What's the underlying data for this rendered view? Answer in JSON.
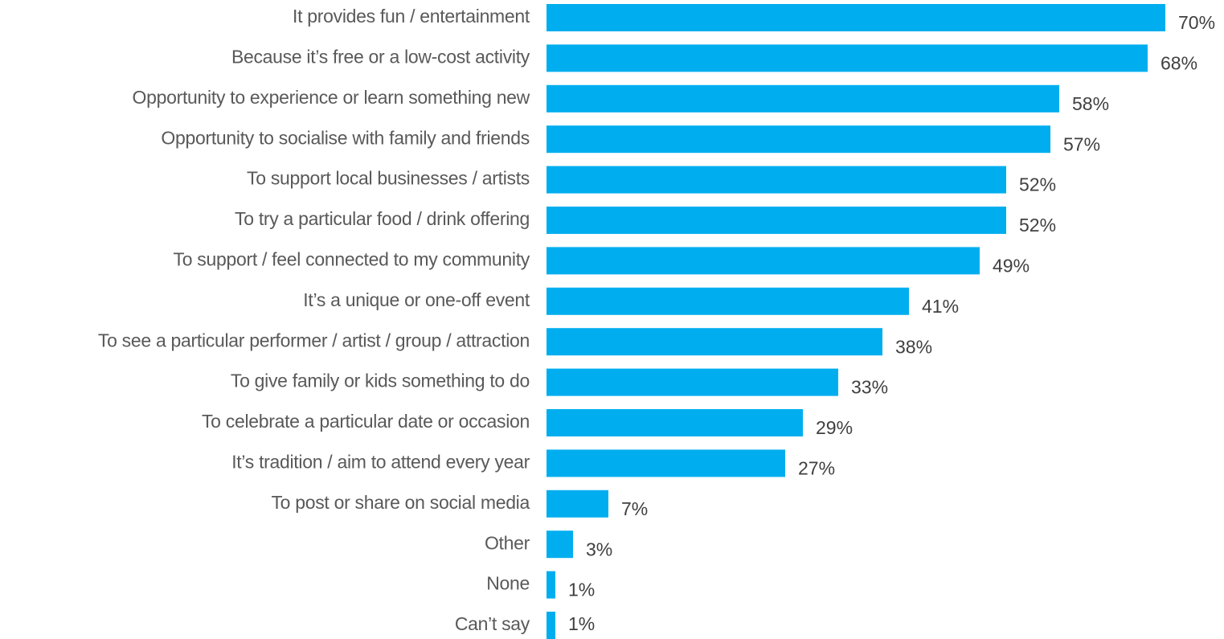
{
  "chart_data": {
    "type": "bar",
    "orientation": "horizontal",
    "bar_color": "#00AEEF",
    "xlim": [
      0,
      100
    ],
    "grid": false,
    "categories": [
      "It provides fun / entertainment",
      "Because it’s free or a low-cost activity",
      "Opportunity to experience or learn something new",
      "Opportunity to socialise with family and friends",
      "To support local businesses / artists",
      "To try a particular food / drink offering",
      "To support / feel connected to my community",
      "It’s a unique or one-off event",
      "To see a particular performer / artist / group / attraction",
      "To give family or kids something to do",
      "To celebrate a particular date or occasion",
      "It’s tradition / aim to attend every year",
      "To post or share on social media",
      "Other",
      "None",
      "Can’t say"
    ],
    "values": [
      70,
      68,
      58,
      57,
      52,
      52,
      49,
      41,
      38,
      33,
      29,
      27,
      7,
      3,
      1,
      1
    ],
    "value_labels": [
      "70%",
      "68%",
      "58%",
      "57%",
      "52%",
      "52%",
      "49%",
      "41%",
      "38%",
      "33%",
      "29%",
      "27%",
      "7%",
      "3%",
      "1%",
      "1%"
    ]
  }
}
